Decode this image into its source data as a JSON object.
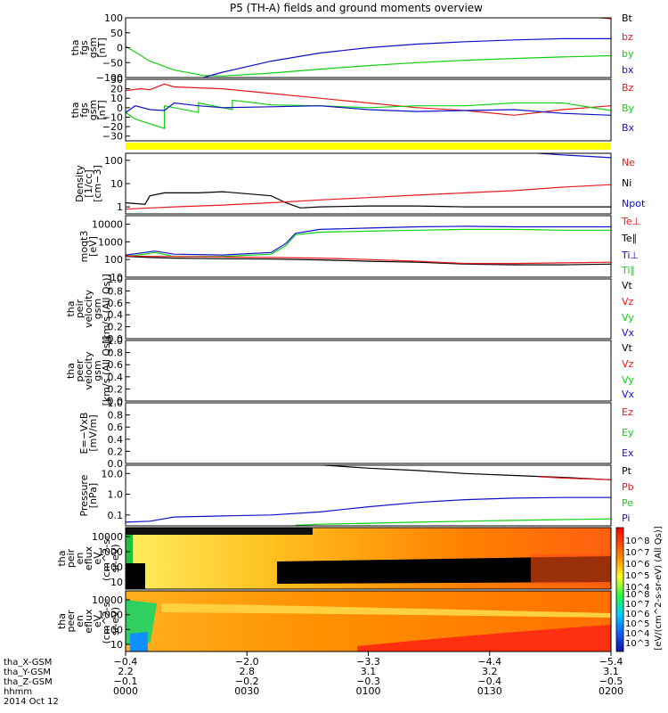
{
  "title": "P5 (TH-A) fields and ground moments overview",
  "colors": {
    "black": "#000000",
    "red": "#e41a1c",
    "green": "#10d010",
    "blue": "#1010c8",
    "yellow": "#ffff00"
  },
  "chart_data": [
    {
      "id": "p1",
      "type": "line",
      "ylabel": [
        "tha",
        "fgs",
        "gsm",
        "[nT]"
      ],
      "ylim": [
        -100,
        100
      ],
      "yticks": [
        "100",
        "50",
        "0",
        "−50",
        "−100"
      ],
      "legend": [
        {
          "name": "Bt",
          "color": "#000000"
        },
        {
          "name": "bz",
          "color": "#e41a1c"
        },
        {
          "name": "by",
          "color": "#10d010"
        },
        {
          "name": "bx",
          "color": "#1010c8"
        }
      ],
      "series": [
        {
          "name": "bz",
          "color": "#e41a1c",
          "x": [
            0.98,
            1.0
          ],
          "y": [
            100,
            97
          ]
        },
        {
          "name": "by",
          "color": "#10d010",
          "x": [
            0,
            0.05,
            0.1,
            0.16,
            0.2,
            0.3,
            0.4,
            0.5,
            0.6,
            0.7,
            0.8,
            0.9,
            1.0
          ],
          "y": [
            5,
            -45,
            -75,
            -93,
            -95,
            -85,
            -72,
            -60,
            -50,
            -42,
            -36,
            -31,
            -27
          ]
        },
        {
          "name": "bx",
          "color": "#1010c8",
          "x": [
            0.16,
            0.2,
            0.3,
            0.4,
            0.5,
            0.6,
            0.7,
            0.8,
            0.9,
            1.0
          ],
          "y": [
            -100,
            -82,
            -45,
            -18,
            0,
            12,
            20,
            26,
            30,
            30
          ]
        }
      ]
    },
    {
      "id": "p2",
      "type": "line",
      "ylabel": [
        "tha",
        "fgs",
        "gsm",
        "[nT]"
      ],
      "ylim": [
        -35,
        30
      ],
      "yticks": [
        "30",
        "20",
        "10",
        "0",
        "−10",
        "−20",
        "−30"
      ],
      "legend": [
        {
          "name": "Bz",
          "color": "#e41a1c"
        },
        {
          "name": "By",
          "color": "#10d010"
        },
        {
          "name": "Bx",
          "color": "#1010c8"
        }
      ],
      "series": [
        {
          "name": "Bz",
          "color": "#e41a1c",
          "x": [
            0,
            0.03,
            0.05,
            0.08,
            0.1,
            0.2,
            0.3,
            0.4,
            0.5,
            0.6,
            0.7,
            0.8,
            0.85,
            0.9,
            0.95,
            1.0
          ],
          "y": [
            18,
            20,
            19,
            25,
            22,
            20,
            15,
            10,
            5,
            0,
            -3,
            -8,
            -5,
            -2,
            0,
            2
          ]
        },
        {
          "name": "By",
          "color": "#10d010",
          "x": [
            0,
            0.02,
            0.08,
            0.08,
            0.15,
            0.15,
            0.22,
            0.22,
            0.3,
            0.4,
            0.5,
            0.6,
            0.7,
            0.8,
            0.9,
            1.0
          ],
          "y": [
            -5,
            -12,
            -22,
            2,
            -5,
            5,
            -2,
            8,
            3,
            2,
            0,
            2,
            2,
            5,
            5,
            -3
          ]
        },
        {
          "name": "Bx",
          "color": "#1010c8",
          "x": [
            0,
            0.02,
            0.05,
            0.08,
            0.1,
            0.15,
            0.2,
            0.3,
            0.4,
            0.5,
            0.6,
            0.7,
            0.8,
            0.9,
            1.0
          ],
          "y": [
            -5,
            2,
            -2,
            -3,
            5,
            2,
            0,
            1,
            2,
            -2,
            -4,
            -3,
            -2,
            -6,
            -8
          ]
        }
      ]
    },
    {
      "id": "p3",
      "type": "line",
      "ylabel": [
        "Density",
        "[1/cc]",
        "[cm−3]"
      ],
      "ylim": [
        0.5,
        200
      ],
      "scale": "log",
      "yticks": [
        "100",
        "10",
        "1"
      ],
      "legend": [
        {
          "name": "Ne",
          "color": "#e41a1c"
        },
        {
          "name": "Ni",
          "color": "#000000"
        },
        {
          "name": "Npot",
          "color": "#1010c8"
        }
      ],
      "series": [
        {
          "name": "Ni",
          "color": "#000000",
          "x": [
            0,
            0.04,
            0.05,
            0.08,
            0.15,
            0.2,
            0.3,
            0.33,
            0.36,
            0.4,
            0.5,
            0.6,
            0.7,
            0.8,
            0.9,
            1.0
          ],
          "y": [
            1.5,
            1.3,
            3,
            4,
            4,
            4.5,
            3,
            1.5,
            0.9,
            1,
            1.1,
            1.1,
            1,
            1,
            1,
            1
          ]
        },
        {
          "name": "Ne",
          "color": "#e41a1c",
          "x": [
            0,
            0.05,
            0.1,
            0.2,
            0.3,
            0.4,
            0.5,
            0.6,
            0.7,
            0.8,
            0.9,
            1.0
          ],
          "y": [
            0.8,
            0.9,
            1,
            1.2,
            1.5,
            2,
            2.5,
            3.2,
            4,
            5,
            7,
            9
          ]
        },
        {
          "name": "Npot",
          "color": "#1010c8",
          "x": [
            0.85,
            0.9,
            1.0
          ],
          "y": [
            200,
            170,
            130
          ]
        }
      ]
    },
    {
      "id": "p4",
      "type": "line",
      "ylabel": [
        "moqt3",
        "[eV]"
      ],
      "ylim": [
        10,
        30000
      ],
      "scale": "log",
      "yticks": [
        "10000",
        "1000",
        "100",
        "10"
      ],
      "legend": [
        {
          "name": "Te⊥",
          "color": "#e41a1c"
        },
        {
          "name": "Te∥",
          "color": "#000000"
        },
        {
          "name": "Ti⊥",
          "color": "#1010c8"
        },
        {
          "name": "Ti∥",
          "color": "#10d010"
        }
      ],
      "series": [
        {
          "name": "Ti⊥",
          "color": "#1010c8",
          "x": [
            0,
            0.04,
            0.06,
            0.1,
            0.2,
            0.3,
            0.33,
            0.35,
            0.4,
            0.5,
            0.6,
            0.7,
            0.8,
            0.9,
            1.0
          ],
          "y": [
            180,
            250,
            300,
            200,
            180,
            250,
            800,
            3000,
            5000,
            6000,
            7000,
            7500,
            7000,
            7000,
            7000
          ]
        },
        {
          "name": "Ti∥",
          "color": "#10d010",
          "x": [
            0,
            0.04,
            0.06,
            0.1,
            0.2,
            0.3,
            0.33,
            0.35,
            0.4,
            0.5,
            0.6,
            0.7,
            0.8,
            0.9,
            1.0
          ],
          "y": [
            150,
            200,
            250,
            150,
            150,
            200,
            600,
            2500,
            3500,
            4000,
            4500,
            5000,
            5000,
            4500,
            4500
          ]
        },
        {
          "name": "Te∥",
          "color": "#000000",
          "x": [
            0,
            0.05,
            0.1,
            0.2,
            0.3,
            0.4,
            0.5,
            0.6,
            0.7,
            0.8,
            0.9,
            1.0
          ],
          "y": [
            150,
            130,
            120,
            110,
            105,
            95,
            80,
            70,
            55,
            50,
            50,
            55
          ]
        },
        {
          "name": "Te⊥",
          "color": "#e41a1c",
          "x": [
            0,
            0.05,
            0.1,
            0.2,
            0.3,
            0.4,
            0.5,
            0.6,
            0.7,
            0.8,
            0.9,
            1.0
          ],
          "y": [
            160,
            150,
            150,
            140,
            130,
            120,
            100,
            80,
            60,
            60,
            65,
            70
          ]
        }
      ]
    },
    {
      "id": "p5",
      "type": "line",
      "ylabel": [
        "tha",
        "peir",
        "velocity",
        "gsm",
        "[km/s (All Qs)]"
      ],
      "ylim": [
        0,
        1
      ],
      "yticks": [
        "1.0",
        "0.8",
        "0.6",
        "0.4",
        "0.2",
        "0.0"
      ],
      "legend": [
        {
          "name": "Vt",
          "color": "#000000"
        },
        {
          "name": "Vz",
          "color": "#e41a1c"
        },
        {
          "name": "Vy",
          "color": "#10d010"
        },
        {
          "name": "Vx",
          "color": "#1010c8"
        }
      ],
      "series": []
    },
    {
      "id": "p6",
      "type": "line",
      "ylabel": [
        "tha",
        "peer",
        "velocity",
        "gsm",
        "[km/s (All Qs)]"
      ],
      "ylim": [
        0,
        1
      ],
      "yticks": [
        "1.0",
        "0.8",
        "0.6",
        "0.4",
        "0.2",
        "0.0"
      ],
      "legend": [
        {
          "name": "Vt",
          "color": "#000000"
        },
        {
          "name": "Vz",
          "color": "#e41a1c"
        },
        {
          "name": "Vy",
          "color": "#10d010"
        },
        {
          "name": "Vx",
          "color": "#1010c8"
        }
      ],
      "series": []
    },
    {
      "id": "p7",
      "type": "line",
      "ylabel": [
        "E=−VxB",
        "[mV/m]"
      ],
      "ylim": [
        0,
        1
      ],
      "yticks": [
        "1.0",
        "0.8",
        "0.6",
        "0.4",
        "0.2",
        "0.0"
      ],
      "legend": [
        {
          "name": "Ez",
          "color": "#e41a1c"
        },
        {
          "name": "Ey",
          "color": "#10d010"
        },
        {
          "name": "Ex",
          "color": "#1010c8"
        }
      ],
      "series": []
    },
    {
      "id": "p8",
      "type": "line",
      "ylabel": [
        "Pressure",
        "[nPa]"
      ],
      "ylim": [
        0.03,
        25
      ],
      "scale": "log",
      "yticks": [
        "10.0",
        "1.0",
        "0.1"
      ],
      "legend": [
        {
          "name": "Pt",
          "color": "#000000"
        },
        {
          "name": "Pb",
          "color": "#e41a1c"
        },
        {
          "name": "Pe",
          "color": "#10d010"
        },
        {
          "name": "Pi",
          "color": "#1010c8"
        }
      ],
      "series": [
        {
          "name": "Pt",
          "color": "#000000",
          "x": [
            0.41,
            0.5,
            0.6,
            0.7,
            0.8,
            0.9,
            1.0
          ],
          "y": [
            25,
            18,
            14,
            10,
            8,
            6.5,
            5
          ]
        },
        {
          "name": "Pb",
          "color": "#e41a1c",
          "x": [
            0.85,
            0.9,
            1.0
          ],
          "y": [
            7,
            6,
            5
          ]
        },
        {
          "name": "Pi",
          "color": "#1010c8",
          "x": [
            0,
            0.05,
            0.1,
            0.2,
            0.3,
            0.4,
            0.5,
            0.6,
            0.7,
            0.8,
            0.9,
            1.0
          ],
          "y": [
            0.045,
            0.05,
            0.08,
            0.09,
            0.1,
            0.14,
            0.25,
            0.4,
            0.55,
            0.65,
            0.7,
            0.7
          ]
        },
        {
          "name": "Pe",
          "color": "#10d010",
          "x": [
            0.35,
            0.4,
            0.5,
            0.6,
            0.7,
            0.8,
            0.9,
            1.0
          ],
          "y": [
            0.032,
            0.036,
            0.04,
            0.045,
            0.05,
            0.055,
            0.06,
            0.065
          ]
        }
      ]
    },
    {
      "id": "s1",
      "type": "heatmap",
      "ylabel": [
        "tha",
        "peir",
        "en",
        "eflux",
        "eV",
        "(cm^2-s-",
        "sr-eV)"
      ],
      "yticks": [
        "10000",
        "1000",
        "100",
        "10"
      ]
    },
    {
      "id": "s2",
      "type": "heatmap",
      "ylabel": [
        "tha",
        "peer",
        "en",
        "eflux",
        "eV",
        "(cm^2-s-",
        "sr-eV)"
      ],
      "yticks": [
        "10000",
        "1000",
        "100",
        "10"
      ]
    }
  ],
  "colorbar": {
    "label": "[eV/(cm^2-s-sr-eV) (All Qs)]",
    "ticks_top": [
      "10^8",
      "10^7",
      "10^6",
      "10^5",
      "10^4"
    ],
    "ticks_bottom": [
      "10^8",
      "10^7",
      "10^6",
      "10^5",
      "10^4",
      "10^3"
    ]
  },
  "xaxis": {
    "row_labels": [
      "tha_X-GSM",
      "tha_Y-GSM",
      "tha_Z-GSM",
      "hhmm",
      "2014 Oct 12"
    ],
    "ticks": [
      {
        "x": 0.0,
        "vals": [
          "−0.4",
          "2.2",
          "−0.1",
          "0000"
        ]
      },
      {
        "x": 0.25,
        "vals": [
          "−2.0",
          "2.8",
          "−0.2",
          "0030"
        ]
      },
      {
        "x": 0.5,
        "vals": [
          "−3.3",
          "3.1",
          "−0.3",
          "0100"
        ]
      },
      {
        "x": 0.75,
        "vals": [
          "−4.4",
          "3.2",
          "−0.4",
          "0130"
        ]
      },
      {
        "x": 1.0,
        "vals": [
          "−5.4",
          "3.1",
          "−0.5",
          "0200"
        ]
      }
    ]
  }
}
